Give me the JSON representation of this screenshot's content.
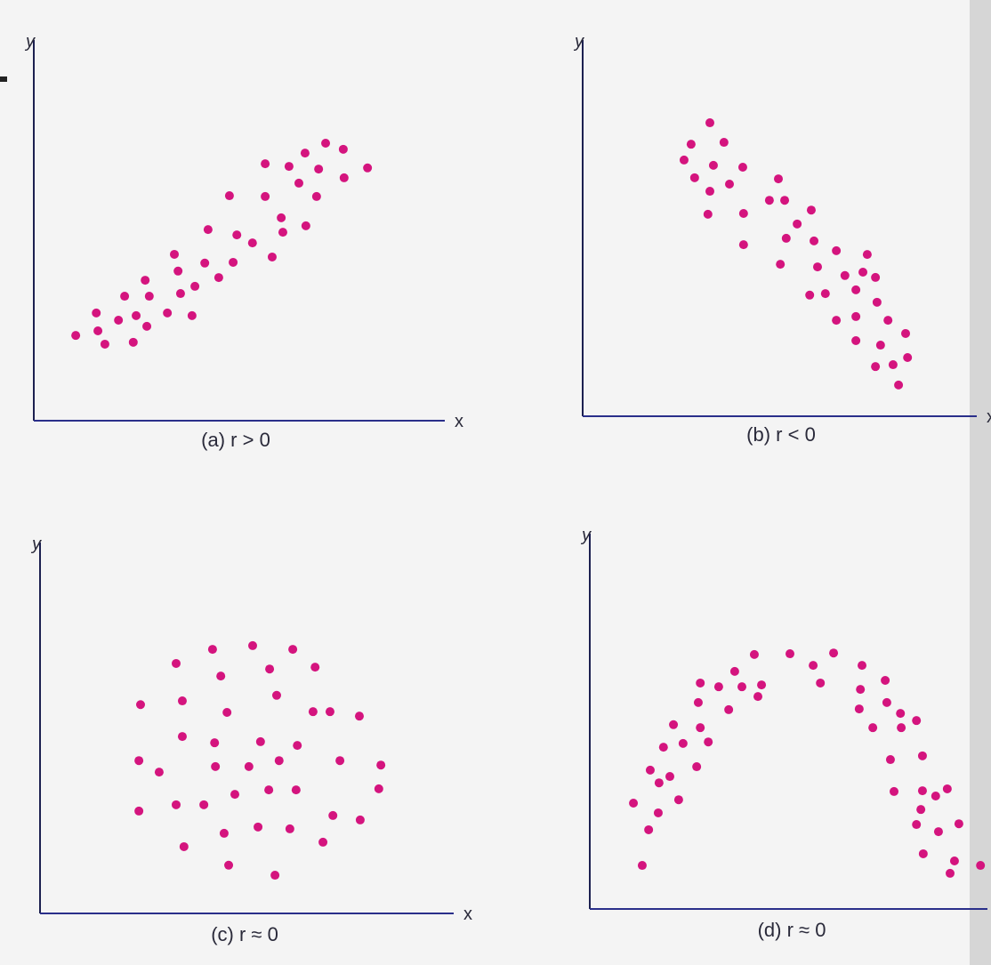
{
  "chart_data": [
    {
      "type": "scatter",
      "caption": "(a)  r > 0",
      "x_label": "x",
      "y_label": "y",
      "color": "#d4147e",
      "xlim": [
        0,
        100
      ],
      "ylim": [
        0,
        100
      ],
      "x": [
        10.2,
        15.2,
        15.6,
        17.3,
        20.6,
        22.1,
        24.2,
        24.9,
        27.1,
        27.5,
        28.1,
        32.5,
        34.2,
        35.1,
        35.7,
        38.5,
        39.2,
        41.6,
        42.4,
        45.0,
        47.6,
        48.5,
        49.4,
        53.2,
        56.3,
        56.3,
        58.0,
        60.2,
        60.6,
        62.1,
        64.5,
        66.0,
        66.2,
        68.8,
        69.3,
        71.0,
        75.3,
        75.5,
        81.2
      ],
      "y": [
        22.4,
        28.3,
        23.6,
        20.1,
        26.4,
        32.7,
        20.6,
        27.6,
        36.9,
        24.8,
        32.7,
        28.3,
        43.7,
        39.3,
        33.4,
        27.6,
        35.3,
        41.4,
        50.2,
        37.6,
        59.1,
        41.6,
        48.8,
        46.7,
        67.5,
        58.9,
        43.0,
        53.3,
        49.5,
        66.8,
        62.4,
        70.3,
        51.2,
        58.9,
        66.1,
        72.9,
        71.3,
        63.8,
        66.4
      ]
    },
    {
      "type": "scatter",
      "caption": "(b)  r < 0",
      "x_label": "x",
      "y_label": "y",
      "color": "#d4147e",
      "xlim": [
        0,
        100
      ],
      "ylim": [
        0,
        100
      ],
      "x": [
        32.5,
        27.7,
        36.1,
        25.9,
        33.4,
        40.9,
        28.6,
        32.5,
        37.5,
        32.0,
        41.1,
        50.0,
        47.7,
        51.6,
        54.8,
        52.0,
        41.1,
        58.4,
        50.5,
        59.1,
        60.0,
        64.8,
        62.0,
        58.0,
        67.0,
        71.6,
        72.7,
        69.8,
        74.8,
        64.8,
        69.8,
        75.2,
        78.0,
        69.8,
        76.1,
        82.5,
        74.8,
        79.3,
        83.0,
        80.7
      ],
      "y": [
        78.0,
        72.3,
        72.8,
        68.1,
        66.7,
        66.2,
        63.4,
        59.8,
        61.7,
        53.7,
        53.9,
        63.1,
        57.4,
        57.4,
        51.1,
        47.3,
        45.6,
        54.8,
        40.4,
        46.6,
        39.7,
        44.0,
        32.6,
        32.2,
        37.4,
        38.3,
        43.0,
        33.6,
        36.9,
        25.5,
        26.5,
        30.3,
        25.5,
        20.1,
        18.9,
        22.0,
        13.2,
        13.7,
        15.6,
        8.3
      ]
    },
    {
      "type": "scatter",
      "caption": "(c)  r ≈ 0",
      "x_label": "x",
      "y_label": "y",
      "color": "#d4147e",
      "xlim": [
        0,
        100
      ],
      "ylim": [
        0,
        100
      ],
      "x": [
        32.9,
        41.7,
        51.4,
        61.1,
        66.5,
        55.5,
        43.7,
        24.3,
        34.4,
        57.2,
        45.2,
        66.0,
        70.1,
        77.2,
        34.4,
        42.2,
        53.3,
        62.2,
        23.9,
        28.8,
        42.4,
        50.5,
        57.8,
        72.5,
        82.4,
        47.1,
        55.3,
        61.9,
        81.9,
        23.9,
        32.9,
        39.6,
        70.8,
        77.4,
        44.5,
        52.7,
        60.4,
        68.4,
        34.8,
        45.6,
        56.8
      ],
      "y": [
        67.4,
        71.2,
        72.2,
        71.2,
        66.4,
        65.9,
        64.0,
        56.3,
        57.3,
        58.8,
        54.2,
        54.4,
        54.4,
        53.2,
        47.7,
        46.0,
        46.3,
        45.3,
        41.2,
        38.1,
        39.6,
        39.6,
        41.2,
        41.2,
        40.0,
        32.1,
        33.3,
        33.3,
        33.6,
        27.6,
        29.3,
        29.3,
        26.4,
        25.2,
        21.6,
        23.3,
        22.8,
        19.2,
        18.0,
        13.0,
        10.3
      ]
    },
    {
      "type": "scatter",
      "caption": "(d)  r ≈ 0",
      "x_label": "x",
      "y_label": "y",
      "color": "#d4147e",
      "xlim": [
        0,
        100
      ],
      "ylim": [
        0,
        100
      ],
      "x": [
        41.1,
        50.0,
        55.8,
        60.9,
        68.0,
        36.2,
        32.2,
        27.6,
        38.0,
        42.9,
        57.6,
        67.6,
        73.8,
        27.1,
        34.7,
        42.0,
        67.3,
        74.2,
        20.9,
        27.6,
        77.6,
        81.6,
        70.7,
        77.8,
        18.4,
        23.3,
        29.6,
        20.0,
        26.7,
        15.1,
        17.3,
        75.1,
        83.1,
        10.9,
        17.1,
        22.2,
        76.0,
        83.1,
        89.3,
        86.4,
        82.7,
        81.6,
        87.1,
        92.2,
        14.7,
        83.3,
        91.1,
        97.6,
        90.0,
        13.1
      ],
      "y": [
        67.8,
        68.0,
        64.9,
        68.2,
        64.9,
        63.3,
        59.2,
        60.2,
        59.2,
        59.7,
        60.2,
        58.5,
        60.9,
        55.0,
        53.1,
        56.6,
        53.3,
        55.0,
        49.1,
        48.3,
        52.1,
        50.2,
        48.3,
        48.3,
        43.1,
        44.1,
        44.5,
        35.3,
        37.9,
        37.0,
        33.6,
        39.8,
        40.8,
        28.2,
        25.6,
        29.1,
        31.3,
        31.5,
        32.0,
        30.1,
        26.5,
        22.5,
        20.6,
        22.7,
        21.1,
        14.7,
        12.8,
        11.6,
        9.5,
        11.6
      ]
    }
  ]
}
